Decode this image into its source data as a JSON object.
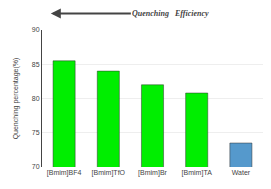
{
  "chart_data": {
    "type": "bar",
    "categories": [
      "[Bmim]BF4",
      "[Bmim]TfO",
      "[Bmim]Br",
      "[Bmim]TA",
      "Water"
    ],
    "values": [
      85.5,
      84.0,
      82.0,
      80.8,
      73.5
    ],
    "colors": [
      "#00ee00",
      "#00ee00",
      "#00ee00",
      "#00ee00",
      "#5599cc"
    ],
    "ylabel": "Quenching percentage(%)",
    "ylim": [
      70,
      90
    ],
    "yticks": [
      70,
      75,
      80,
      85,
      90
    ],
    "grid": true,
    "annotations": [
      "Quenching   Efficiency"
    ]
  }
}
